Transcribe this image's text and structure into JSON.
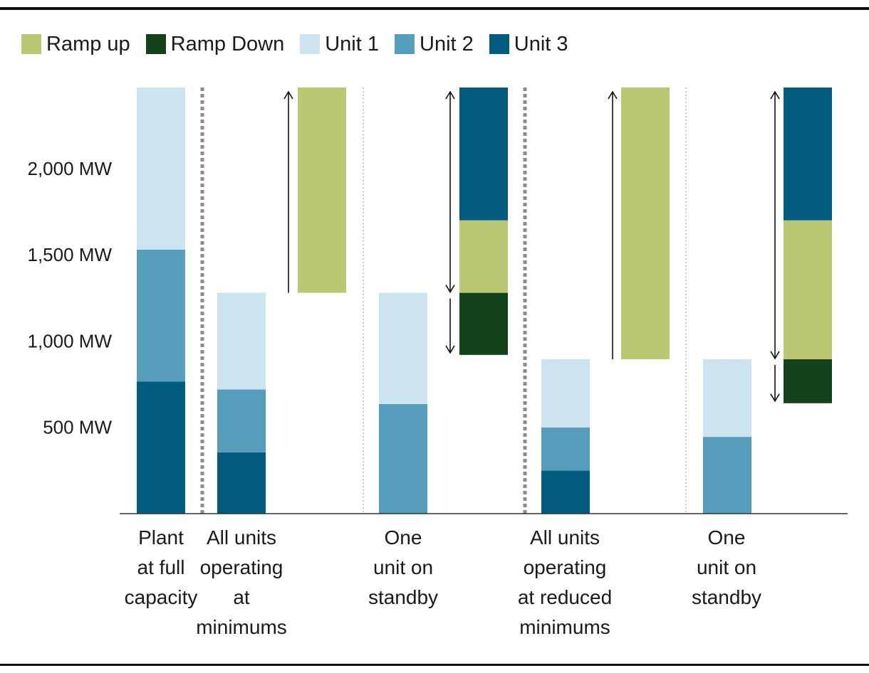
{
  "chart_data": {
    "type": "bar",
    "subtype": "stacked-floating",
    "title": "",
    "xlabel": "",
    "ylabel": "",
    "ylim": [
      0,
      2470
    ],
    "yticks": [
      {
        "value": 500,
        "label": "500 MW"
      },
      {
        "value": 1000,
        "label": "1,000 MW"
      },
      {
        "value": 1500,
        "label": "1,500 MW"
      },
      {
        "value": 2000,
        "label": "2,000 MW"
      }
    ],
    "legend": {
      "position": "top-left",
      "entries": [
        {
          "key": "ramp_up",
          "label": "Ramp up",
          "color": "#bcc774"
        },
        {
          "key": "ramp_down",
          "label": "Ramp Down",
          "color": "#14421b"
        },
        {
          "key": "unit1",
          "label": "Unit 1",
          "color": "#cce3f0"
        },
        {
          "key": "unit2",
          "label": "Unit 2",
          "color": "#559dbb"
        },
        {
          "key": "unit3",
          "label": "Unit 3",
          "color": "#025c7f"
        }
      ]
    },
    "scenarios": [
      {
        "label_lines": [
          "Plant",
          "at full",
          "capacity"
        ],
        "operating": [
          {
            "series": "unit3",
            "from": 0,
            "to": 765
          },
          {
            "series": "unit2",
            "from": 765,
            "to": 1530
          },
          {
            "series": "unit1",
            "from": 1530,
            "to": 2470
          }
        ]
      },
      {
        "label_lines": [
          "All units",
          "operating",
          "at",
          "minimums"
        ],
        "operating": [
          {
            "series": "unit3",
            "from": 0,
            "to": 355
          },
          {
            "series": "unit2",
            "from": 355,
            "to": 720
          },
          {
            "series": "unit1",
            "from": 720,
            "to": 1280
          }
        ],
        "flex": [
          {
            "series": "ramp_up",
            "from": 1280,
            "to": 2470
          }
        ]
      },
      {
        "label_lines": [
          "One",
          "unit on",
          "standby"
        ],
        "operating": [
          {
            "series": "unit2",
            "from": 0,
            "to": 635
          },
          {
            "series": "unit1",
            "from": 635,
            "to": 1280
          }
        ],
        "flex": [
          {
            "series": "ramp_down",
            "from": 920,
            "to": 1280
          },
          {
            "series": "ramp_up",
            "from": 1280,
            "to": 1700
          },
          {
            "series": "unit3",
            "from": 1700,
            "to": 2470
          }
        ]
      },
      {
        "label_lines": [
          "All units",
          "operating",
          "at reduced",
          "minimums"
        ],
        "operating": [
          {
            "series": "unit3",
            "from": 0,
            "to": 250
          },
          {
            "series": "unit2",
            "from": 250,
            "to": 500
          },
          {
            "series": "unit1",
            "from": 500,
            "to": 895
          }
        ],
        "flex": [
          {
            "series": "ramp_up",
            "from": 895,
            "to": 2470
          }
        ]
      },
      {
        "label_lines": [
          "One",
          "unit on",
          "standby"
        ],
        "operating": [
          {
            "series": "unit2",
            "from": 0,
            "to": 445
          },
          {
            "series": "unit1",
            "from": 445,
            "to": 895
          }
        ],
        "flex": [
          {
            "series": "ramp_down",
            "from": 640,
            "to": 895
          },
          {
            "series": "ramp_up",
            "from": 895,
            "to": 1700
          },
          {
            "series": "unit3",
            "from": 1700,
            "to": 2470
          }
        ]
      }
    ],
    "grid": false
  }
}
